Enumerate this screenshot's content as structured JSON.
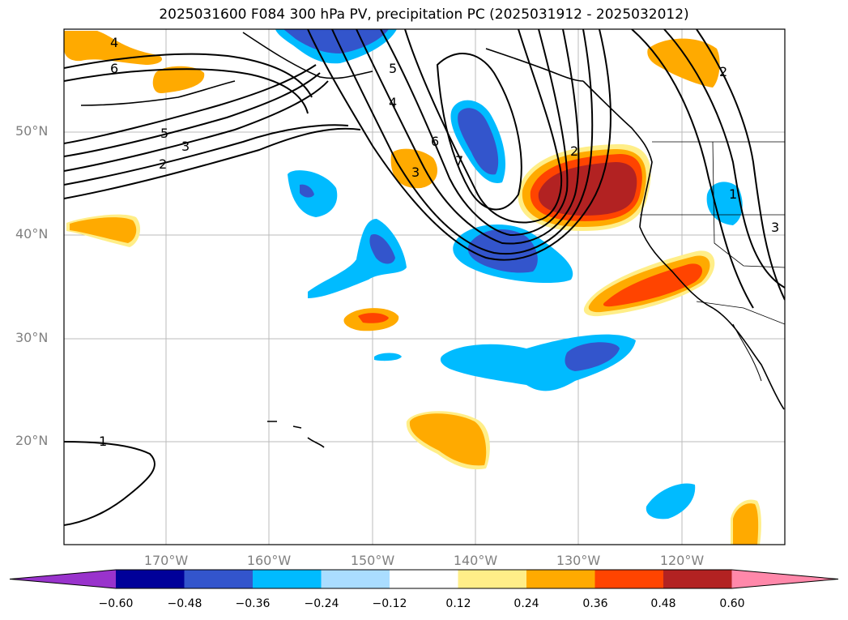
{
  "title": "2025031600 F084 300 hPa PV, precipitation PC (2025031912 - 2025032012)",
  "lat_labels": [
    "50°N",
    "40°N",
    "30°N",
    "20°N"
  ],
  "lon_labels": [
    "170°W",
    "160°W",
    "150°W",
    "140°W",
    "130°W",
    "120°W"
  ],
  "contour_labels": [
    "4",
    "6",
    "5",
    "3",
    "2",
    "5",
    "4",
    "6",
    "7",
    "3",
    "2",
    "1",
    "2",
    "3",
    "1"
  ],
  "colorbar": {
    "ticks": [
      "−0.60",
      "−0.48",
      "−0.36",
      "−0.24",
      "−0.12",
      "0.12",
      "0.24",
      "0.36",
      "0.48",
      "0.60"
    ],
    "colors": [
      "#9933cc",
      "#000099",
      "#3355cc",
      "#00bbff",
      "#aaddff",
      "#ffffff",
      "#ffee88",
      "#ffaa00",
      "#ff4400",
      "#b22222",
      "#ff88aa"
    ]
  },
  "map_layers": [
    "shaded precipitation PC",
    "300 hPa PV contours",
    "coastlines",
    "lat/lon gridlines"
  ]
}
